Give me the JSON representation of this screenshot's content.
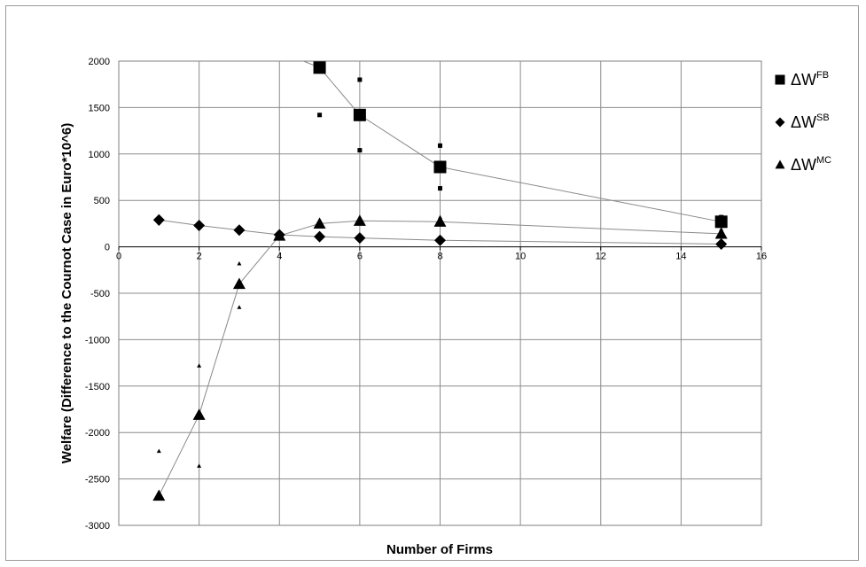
{
  "chart_data": {
    "type": "scatter",
    "xlabel": "Number of Firms",
    "ylabel": "Welfare (Difference to the Cournot Case in Euro*10^6)",
    "xlim": [
      0,
      16
    ],
    "ylim": [
      -3000,
      2000
    ],
    "xticks": [
      0,
      2,
      4,
      6,
      8,
      10,
      12,
      14,
      16
    ],
    "yticks": [
      -3000,
      -2500,
      -2000,
      -1500,
      -1000,
      -500,
      0,
      500,
      1000,
      1500,
      2000
    ],
    "grid": true,
    "legend_position": "right",
    "series": [
      {
        "name": "ΔW",
        "name_sup": "FB",
        "marker": "square",
        "color": "#000000",
        "points": [
          [
            5,
            1930
          ],
          [
            6,
            1420
          ],
          [
            8,
            860
          ],
          [
            15,
            270
          ]
        ],
        "upper": [
          [
            6,
            1800
          ],
          [
            8,
            1090
          ],
          [
            15,
            320
          ]
        ],
        "lower": [
          [
            5,
            1420
          ],
          [
            6,
            1040
          ],
          [
            8,
            630
          ],
          [
            15,
            230
          ]
        ],
        "trend": [
          [
            4.6,
            2000
          ],
          [
            5,
            1930
          ],
          [
            6,
            1420
          ],
          [
            8,
            860
          ],
          [
            15,
            270
          ]
        ]
      },
      {
        "name": "ΔW",
        "name_sup": "SB",
        "marker": "diamond",
        "color": "#000000",
        "points": [
          [
            1,
            290
          ],
          [
            2,
            230
          ],
          [
            3,
            180
          ],
          [
            4,
            130
          ],
          [
            5,
            110
          ],
          [
            6,
            95
          ],
          [
            8,
            70
          ],
          [
            15,
            30
          ]
        ],
        "upper": [],
        "lower": [
          [
            1,
            250
          ],
          [
            2,
            205
          ]
        ],
        "trend": [
          [
            1,
            290
          ],
          [
            2,
            230
          ],
          [
            3,
            180
          ],
          [
            4,
            130
          ],
          [
            5,
            110
          ],
          [
            6,
            95
          ],
          [
            8,
            70
          ],
          [
            15,
            30
          ]
        ]
      },
      {
        "name": "ΔW",
        "name_sup": "MC",
        "marker": "triangle",
        "color": "#000000",
        "points": [
          [
            1,
            -2680
          ],
          [
            2,
            -1810
          ],
          [
            3,
            -400
          ],
          [
            4,
            120
          ],
          [
            5,
            250
          ],
          [
            6,
            280
          ],
          [
            8,
            270
          ],
          [
            15,
            140
          ]
        ],
        "upper": [
          [
            1,
            -2200
          ],
          [
            2,
            -1280
          ],
          [
            3,
            -180
          ],
          [
            8,
            320
          ],
          [
            15,
            190
          ]
        ],
        "lower": [
          [
            2,
            -2360
          ],
          [
            3,
            -650
          ]
        ],
        "trend": [
          [
            1,
            -2680
          ],
          [
            2,
            -1810
          ],
          [
            3,
            -400
          ],
          [
            4,
            120
          ],
          [
            5,
            250
          ],
          [
            6,
            280
          ],
          [
            8,
            270
          ],
          [
            15,
            140
          ]
        ]
      }
    ]
  }
}
